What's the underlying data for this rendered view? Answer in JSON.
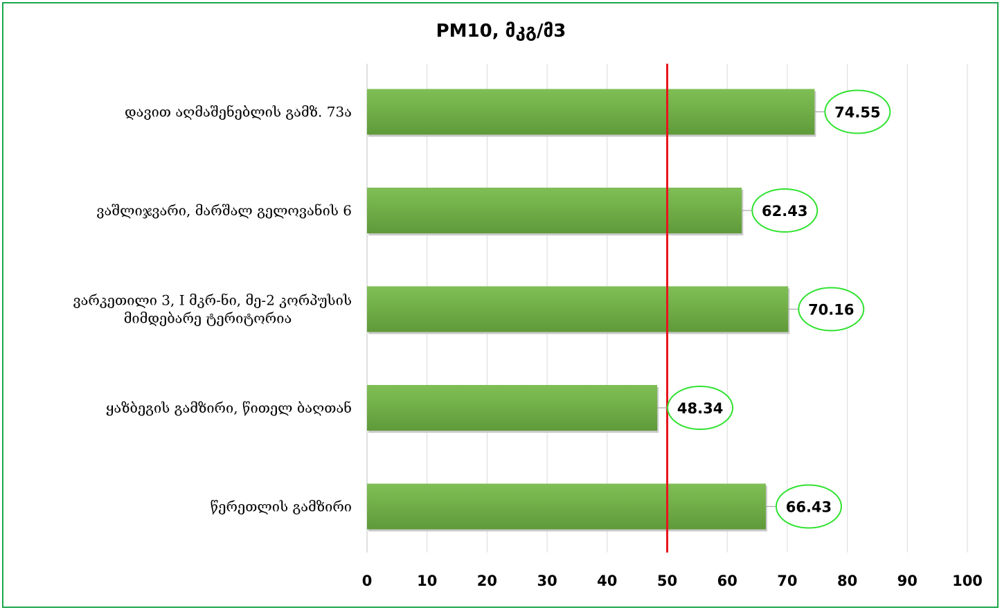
{
  "chart_data": {
    "type": "bar",
    "orientation": "horizontal",
    "title": "PM10, მკგ/მ3",
    "categories": [
      [
        "დავით აღმაშენებლის გამზ. 73ა"
      ],
      [
        "ვაშლიჯვარი, მარშალ გელოვანის 6"
      ],
      [
        "ვარკეთილი 3, I მკრ-ნი, მე-2 კორპუსის",
        "მიმდებარე ტერიტორია"
      ],
      [
        "ყაზბეგის გამზირი, წითელ ბაღთან"
      ],
      [
        "წერეთლის გამზირი"
      ]
    ],
    "values": [
      74.55,
      62.43,
      70.16,
      48.34,
      66.43
    ],
    "value_labels": [
      "74.55",
      "62.43",
      "70.16",
      "48.34",
      "66.43"
    ],
    "xlim": [
      0,
      100
    ],
    "x_ticks": [
      "0",
      "10",
      "20",
      "30",
      "40",
      "50",
      "60",
      "70",
      "80",
      "90",
      "100"
    ],
    "reference_line": {
      "value": 50,
      "color": "#e8141c"
    },
    "grid": "vertical",
    "bar_color": "#70ad47",
    "label_outline_color": "#2ee22e",
    "frame_color": "#1aa64a"
  }
}
